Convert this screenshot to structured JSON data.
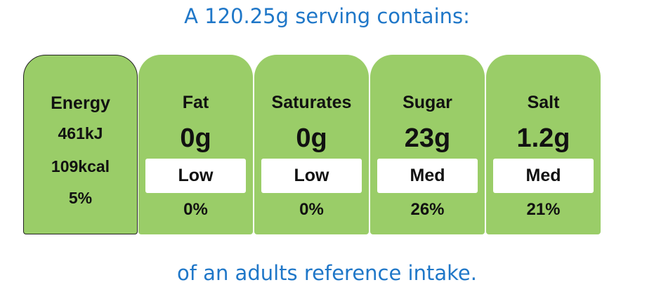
{
  "header": {
    "title": "A 120.25g serving contains:"
  },
  "energy": {
    "label": "Energy",
    "kj": "461kJ",
    "kcal": "109kcal",
    "percent": "5%"
  },
  "nutrients": [
    {
      "name": "Fat",
      "amount": "0g",
      "level": "Low",
      "percent": "0%"
    },
    {
      "name": "Saturates",
      "amount": "0g",
      "level": "Low",
      "percent": "0%"
    },
    {
      "name": "Sugar",
      "amount": "23g",
      "level": "Med",
      "percent": "26%"
    },
    {
      "name": "Salt",
      "amount": "1.2g",
      "level": "Med",
      "percent": "21%"
    }
  ],
  "footer": {
    "text": "of an adults reference intake."
  }
}
